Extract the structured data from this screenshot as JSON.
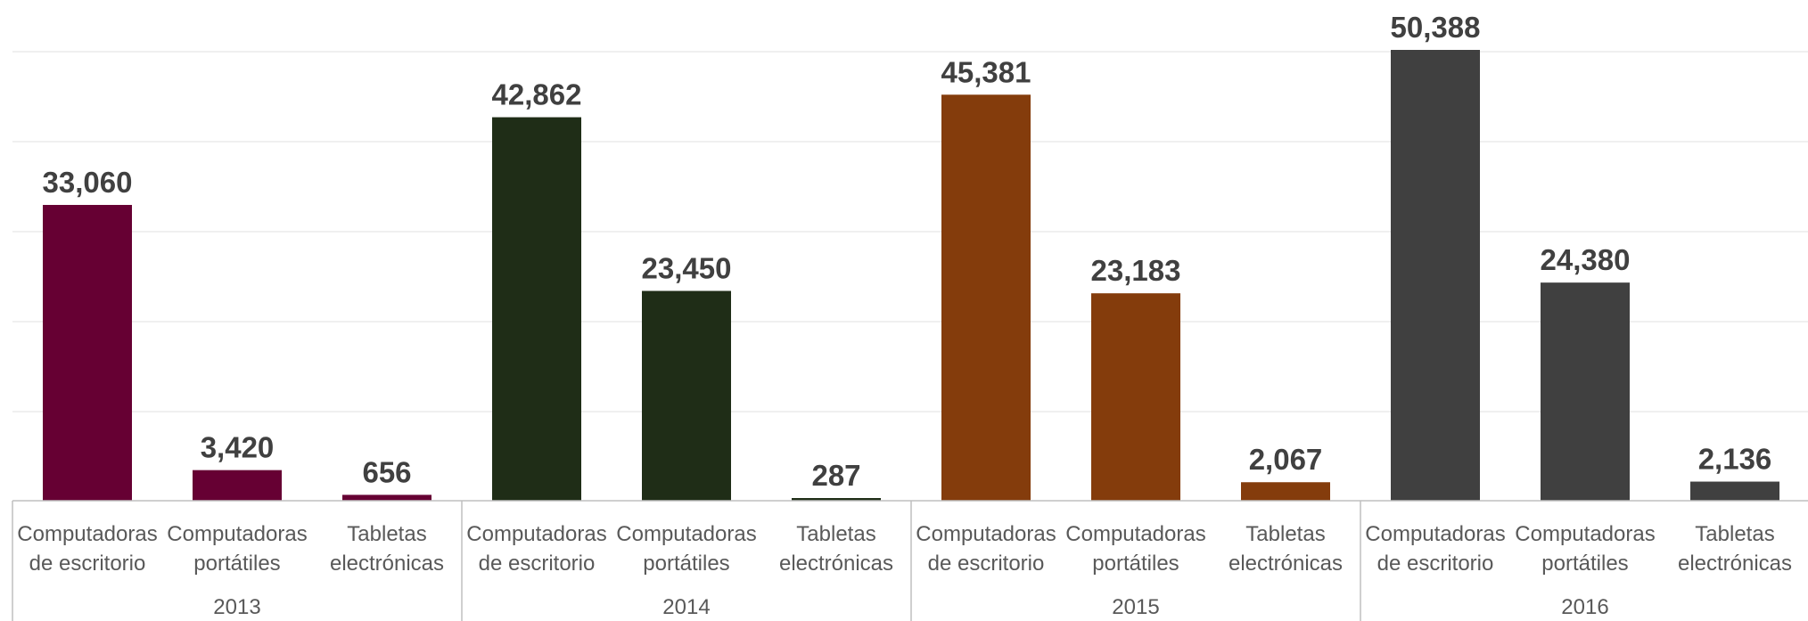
{
  "chart_data": {
    "type": "bar",
    "title": "",
    "xlabel": "",
    "ylabel": "",
    "ylim": [
      0,
      50388
    ],
    "grid": "horizontal",
    "legend": "none",
    "groups": [
      {
        "year": "2013",
        "color": "#660033",
        "bars": [
          {
            "label": [
              "Computadoras",
              "de escritorio"
            ],
            "value": 33060,
            "display": "33,060"
          },
          {
            "label": [
              "Computadoras",
              "portátiles"
            ],
            "value": 3420,
            "display": "3,420"
          },
          {
            "label": [
              "Tabletas",
              "electrónicas"
            ],
            "value": 656,
            "display": "656"
          }
        ]
      },
      {
        "year": "2014",
        "color": "#1f2d17",
        "bars": [
          {
            "label": [
              "Computadoras",
              "de escritorio"
            ],
            "value": 42862,
            "display": "42,862"
          },
          {
            "label": [
              "Computadoras",
              "portátiles"
            ],
            "value": 23450,
            "display": "23,450"
          },
          {
            "label": [
              "Tabletas",
              "electrónicas"
            ],
            "value": 287,
            "display": "287"
          }
        ]
      },
      {
        "year": "2015",
        "color": "#843c0c",
        "bars": [
          {
            "label": [
              "Computadoras",
              "de escritorio"
            ],
            "value": 45381,
            "display": "45,381"
          },
          {
            "label": [
              "Computadoras",
              "portátiles"
            ],
            "value": 23183,
            "display": "23,183"
          },
          {
            "label": [
              "Tabletas",
              "electrónicas"
            ],
            "value": 2067,
            "display": "2,067"
          }
        ]
      },
      {
        "year": "2016",
        "color": "#404040",
        "bars": [
          {
            "label": [
              "Computadoras",
              "de escritorio"
            ],
            "value": 50388,
            "display": "50,388"
          },
          {
            "label": [
              "Computadoras",
              "portátiles"
            ],
            "value": 24380,
            "display": "24,380"
          },
          {
            "label": [
              "Tabletas",
              "electrónicas"
            ],
            "value": 2136,
            "display": "2,136"
          }
        ]
      }
    ]
  }
}
